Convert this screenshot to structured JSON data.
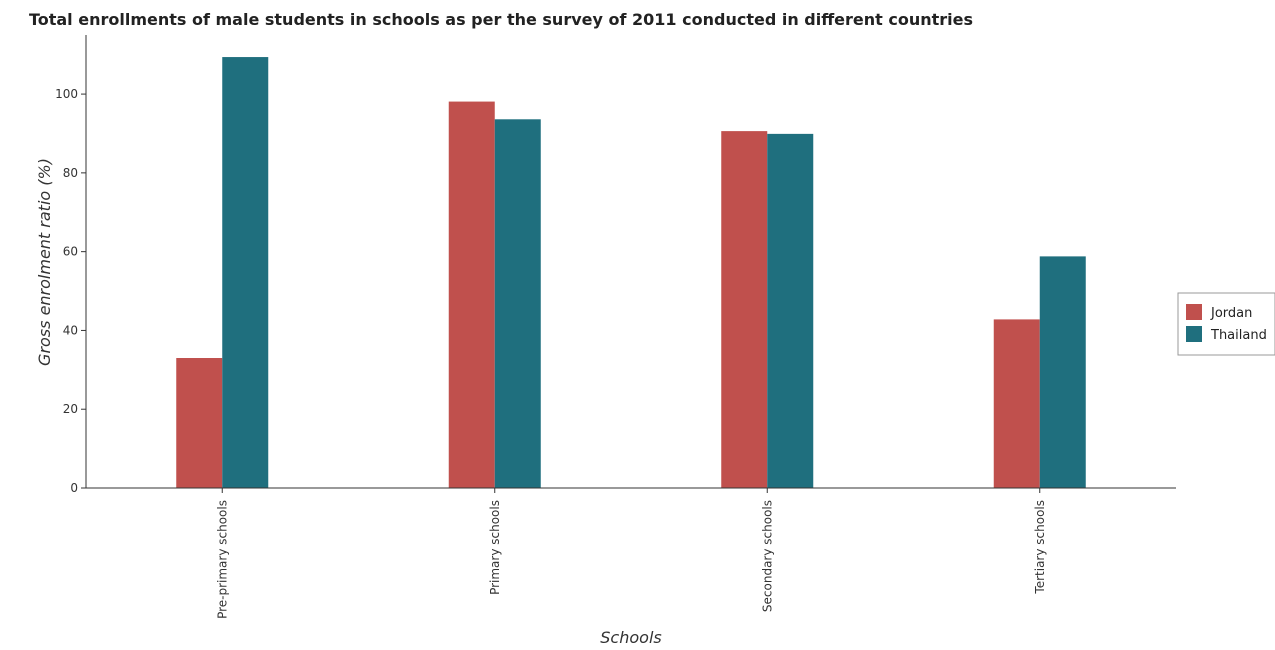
{
  "chart_data": {
    "type": "bar",
    "title": "Total enrollments of male students in schools as per the survey of 2011 conducted in different countries",
    "xlabel": "Schools",
    "ylabel": "Gross enrolment ratio (%)",
    "categories": [
      "Pre-primary schools",
      "Primary schools",
      "Secondary schools",
      "Tertiary schools"
    ],
    "series": [
      {
        "name": "Jordan",
        "color": "#c0504d",
        "values": [
          33.0,
          98.1,
          90.6,
          42.8
        ]
      },
      {
        "name": "Thailand",
        "color": "#1f6f7e",
        "values": [
          109.4,
          93.6,
          89.9,
          58.8
        ]
      }
    ],
    "ylim": [
      0,
      115
    ],
    "yticks": [
      0,
      20,
      40,
      60,
      80,
      100
    ],
    "grid": false,
    "legend_position": "right"
  }
}
